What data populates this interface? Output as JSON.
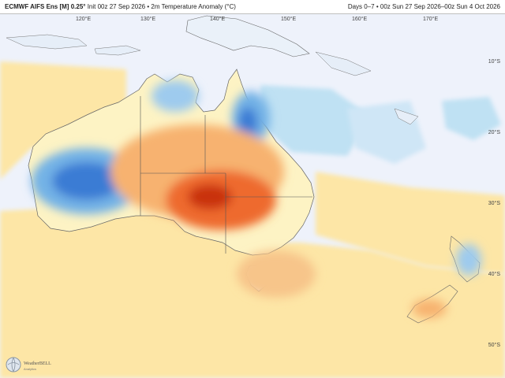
{
  "header": {
    "model": "ECMWF AIFS Ens [M] 0.25°",
    "init": "Init 00z 27 Sep 2026",
    "bullet": "•",
    "variable": "2m Temperature Anomaly (°C)",
    "valid": "Days 0–7 • 00z Sun 27 Sep 2026–00z Sun 4 Oct 2026"
  },
  "axes": {
    "longitudes": [
      "120°E",
      "130°E",
      "140°E",
      "150°E",
      "160°E",
      "170°E"
    ],
    "latitudes": [
      "10°S",
      "20°S",
      "30°S",
      "40°S",
      "50°S"
    ]
  },
  "branding": {
    "logo_text": "WeatherBELL",
    "logo_sub": "Analytics"
  },
  "colors": {
    "land_bg": "#fdf3c4",
    "ocean_near_normal": "#eef2fb",
    "warm_mild": "#fde6a6",
    "warm_orange": "#f7b270",
    "warm_strong": "#ee6a2e",
    "warm_extreme": "#c9300f",
    "cool_light": "#bfe1f3",
    "cool_mid": "#73b2e6",
    "cool_strong": "#3b7bd4"
  }
}
